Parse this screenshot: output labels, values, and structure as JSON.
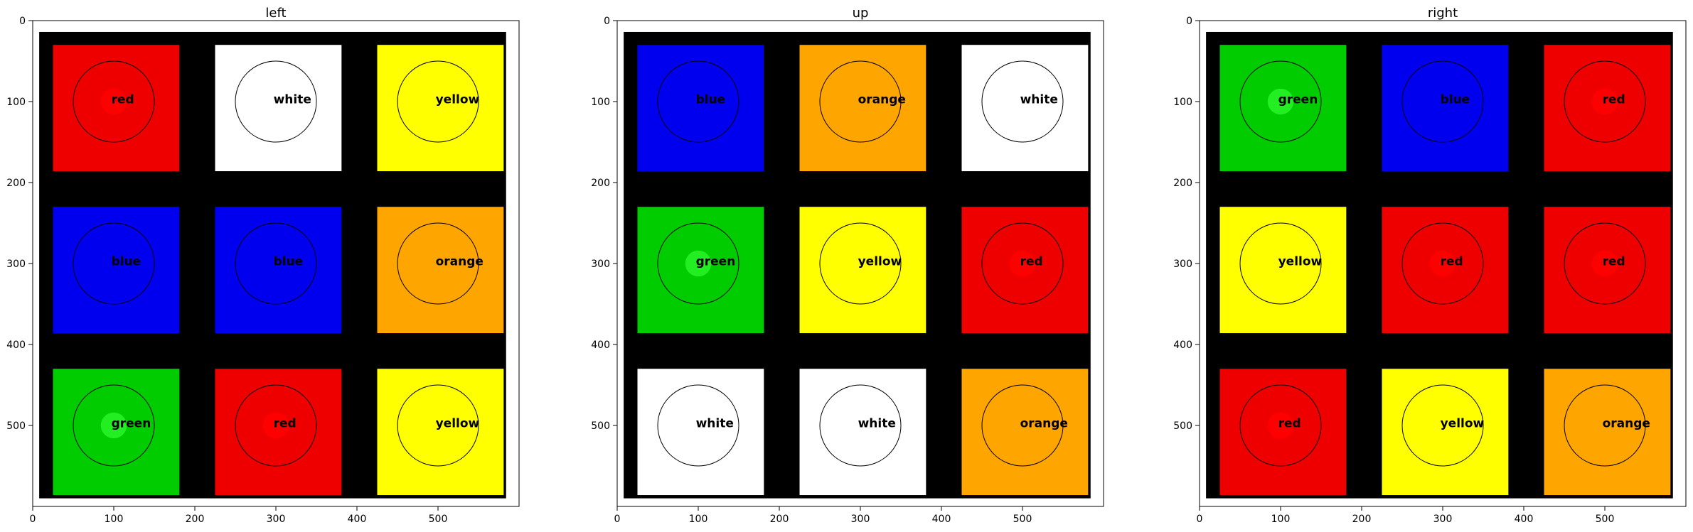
{
  "panels": [
    {
      "title": "left",
      "cells": [
        {
          "color": "red",
          "label": "red"
        },
        {
          "color": "white",
          "label": "white"
        },
        {
          "color": "yellow",
          "label": "yellow"
        },
        {
          "color": "blue",
          "label": "blue"
        },
        {
          "color": "blue",
          "label": "blue"
        },
        {
          "color": "orange",
          "label": "orange"
        },
        {
          "color": "green",
          "label": "green"
        },
        {
          "color": "red",
          "label": "red"
        },
        {
          "color": "yellow",
          "label": "yellow"
        }
      ]
    },
    {
      "title": "up",
      "cells": [
        {
          "color": "blue",
          "label": "blue"
        },
        {
          "color": "orange",
          "label": "orange"
        },
        {
          "color": "white",
          "label": "white"
        },
        {
          "color": "green",
          "label": "green"
        },
        {
          "color": "yellow",
          "label": "yellow"
        },
        {
          "color": "red",
          "label": "red"
        },
        {
          "color": "white",
          "label": "white"
        },
        {
          "color": "white",
          "label": "white"
        },
        {
          "color": "orange",
          "label": "orange"
        }
      ]
    },
    {
      "title": "right",
      "cells": [
        {
          "color": "green",
          "label": "green"
        },
        {
          "color": "blue",
          "label": "blue"
        },
        {
          "color": "red",
          "label": "red"
        },
        {
          "color": "yellow",
          "label": "yellow"
        },
        {
          "color": "red",
          "label": "red"
        },
        {
          "color": "red",
          "label": "red"
        },
        {
          "color": "red",
          "label": "red"
        },
        {
          "color": "yellow",
          "label": "yellow"
        },
        {
          "color": "orange",
          "label": "orange"
        }
      ]
    }
  ],
  "axis": {
    "x_ticks": [
      "0",
      "100",
      "200",
      "300",
      "400",
      "500"
    ],
    "y_ticks": [
      "0",
      "100",
      "200",
      "300",
      "400",
      "500"
    ]
  },
  "palette": {
    "red": "#ee0000",
    "white": "#ffffff",
    "yellow": "#ffff00",
    "blue": "#0000ee",
    "orange": "#ffa500",
    "green": "#00cc00",
    "background": "#000000",
    "highlight_red": "#ff0000",
    "highlight_green": "#22ee22"
  }
}
